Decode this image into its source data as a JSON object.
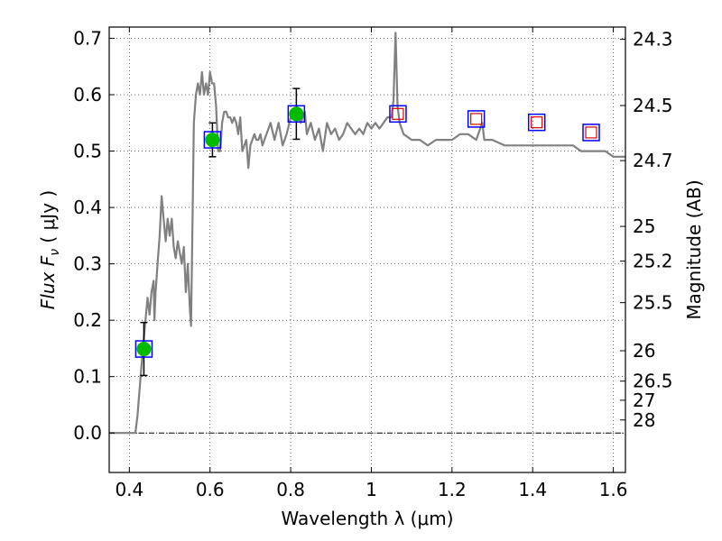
{
  "chart_data": {
    "type": "line",
    "xlabel": "Wavelength  λ (μm)",
    "ylabel": "Flux  F",
    "ylabel_sub": "ν",
    "ylabel_unit": "  ( μJy )",
    "y2label": "Magnitude (AB)",
    "xlim": [
      0.35,
      1.63
    ],
    "ylim": [
      -0.07,
      0.72
    ],
    "grid": true,
    "x_ticks": [
      {
        "value": 0.4,
        "label": "0.4"
      },
      {
        "value": 0.6,
        "label": "0.6"
      },
      {
        "value": 0.8,
        "label": "0.8"
      },
      {
        "value": 1.0,
        "label": "1"
      },
      {
        "value": 1.2,
        "label": "1.2"
      },
      {
        "value": 1.4,
        "label": "1.4"
      },
      {
        "value": 1.6,
        "label": "1.6"
      }
    ],
    "y_ticks": [
      {
        "value": 0.0,
        "label": "0.0"
      },
      {
        "value": 0.1,
        "label": "0.1"
      },
      {
        "value": 0.2,
        "label": "0.2"
      },
      {
        "value": 0.3,
        "label": "0.3"
      },
      {
        "value": 0.4,
        "label": "0.4"
      },
      {
        "value": 0.5,
        "label": "0.5"
      },
      {
        "value": 0.6,
        "label": "0.6"
      },
      {
        "value": 0.7,
        "label": "0.7"
      }
    ],
    "y2_ticks": [
      {
        "label": "24.3",
        "flux": 0.6982
      },
      {
        "label": "24.5",
        "flux": 0.5808
      },
      {
        "label": "24.7",
        "flux": 0.4831
      },
      {
        "label": "25",
        "flux": 0.3664
      },
      {
        "label": "25.2",
        "flux": 0.3048
      },
      {
        "label": "25.5",
        "flux": 0.2312
      },
      {
        "label": "26",
        "flux": 0.1459
      },
      {
        "label": "26.5",
        "flux": 0.092
      },
      {
        "label": "27",
        "flux": 0.0581
      },
      {
        "label": "28",
        "flux": 0.0231
      }
    ],
    "colors": {
      "model": "#808080",
      "observed_fill": "#00bb00",
      "box": "#0000ff",
      "model_phot": "#dd0000",
      "error_bar": "#000000"
    },
    "series": [
      {
        "kind": "model-spectrum",
        "x": [
          0.35,
          0.415,
          0.42,
          0.43,
          0.44,
          0.445,
          0.45,
          0.455,
          0.46,
          0.462,
          0.465,
          0.47,
          0.475,
          0.48,
          0.485,
          0.49,
          0.495,
          0.5,
          0.505,
          0.51,
          0.515,
          0.52,
          0.525,
          0.53,
          0.535,
          0.54,
          0.545,
          0.55,
          0.553,
          0.556,
          0.56,
          0.565,
          0.57,
          0.575,
          0.58,
          0.585,
          0.59,
          0.595,
          0.6,
          0.605,
          0.61,
          0.615,
          0.62,
          0.625,
          0.63,
          0.635,
          0.64,
          0.645,
          0.65,
          0.655,
          0.66,
          0.665,
          0.67,
          0.675,
          0.68,
          0.685,
          0.69,
          0.695,
          0.7,
          0.705,
          0.71,
          0.715,
          0.72,
          0.725,
          0.73,
          0.74,
          0.75,
          0.76,
          0.77,
          0.78,
          0.79,
          0.8,
          0.81,
          0.815,
          0.82,
          0.825,
          0.83,
          0.835,
          0.84,
          0.85,
          0.86,
          0.87,
          0.88,
          0.89,
          0.9,
          0.91,
          0.92,
          0.93,
          0.94,
          0.95,
          0.96,
          0.97,
          0.98,
          0.99,
          1.0,
          1.01,
          1.02,
          1.03,
          1.04,
          1.05,
          1.055,
          1.06,
          1.065,
          1.07,
          1.08,
          1.1,
          1.12,
          1.14,
          1.16,
          1.18,
          1.2,
          1.22,
          1.24,
          1.26,
          1.27,
          1.275,
          1.28,
          1.3,
          1.33,
          1.35,
          1.38,
          1.4,
          1.42,
          1.44,
          1.46,
          1.48,
          1.5,
          1.52,
          1.54,
          1.56,
          1.58,
          1.6,
          1.63
        ],
        "y": [
          0.0,
          0.0,
          0.03,
          0.12,
          0.2,
          0.24,
          0.21,
          0.25,
          0.27,
          0.2,
          0.25,
          0.3,
          0.35,
          0.42,
          0.38,
          0.34,
          0.38,
          0.35,
          0.38,
          0.33,
          0.31,
          0.34,
          0.32,
          0.3,
          0.33,
          0.25,
          0.3,
          0.22,
          0.19,
          0.35,
          0.55,
          0.6,
          0.62,
          0.6,
          0.64,
          0.6,
          0.62,
          0.6,
          0.64,
          0.62,
          0.62,
          0.58,
          0.5,
          0.5,
          0.55,
          0.57,
          0.57,
          0.56,
          0.56,
          0.55,
          0.56,
          0.55,
          0.53,
          0.56,
          0.5,
          0.51,
          0.52,
          0.47,
          0.51,
          0.52,
          0.53,
          0.52,
          0.52,
          0.53,
          0.51,
          0.53,
          0.55,
          0.52,
          0.55,
          0.51,
          0.53,
          0.56,
          0.57,
          0.58,
          0.56,
          0.55,
          0.56,
          0.57,
          0.53,
          0.55,
          0.52,
          0.54,
          0.5,
          0.55,
          0.53,
          0.54,
          0.52,
          0.53,
          0.55,
          0.54,
          0.53,
          0.54,
          0.53,
          0.55,
          0.54,
          0.55,
          0.54,
          0.55,
          0.56,
          0.56,
          0.59,
          0.71,
          0.58,
          0.55,
          0.53,
          0.52,
          0.52,
          0.51,
          0.52,
          0.52,
          0.52,
          0.53,
          0.53,
          0.52,
          0.54,
          0.55,
          0.52,
          0.52,
          0.51,
          0.51,
          0.51,
          0.51,
          0.51,
          0.51,
          0.51,
          0.51,
          0.51,
          0.5,
          0.5,
          0.5,
          0.5,
          0.49,
          0.49
        ]
      },
      {
        "kind": "observed-photometry",
        "points": [
          {
            "x": 0.436,
            "y": 0.149,
            "err": 0.047
          },
          {
            "x": 0.606,
            "y": 0.52,
            "err": 0.03
          },
          {
            "x": 0.814,
            "y": 0.566,
            "err": 0.045
          }
        ]
      },
      {
        "kind": "model-photometry",
        "points": [
          {
            "x": 1.066,
            "y": 0.566
          },
          {
            "x": 1.26,
            "y": 0.557
          },
          {
            "x": 1.41,
            "y": 0.551
          },
          {
            "x": 1.545,
            "y": 0.533
          }
        ]
      }
    ]
  }
}
